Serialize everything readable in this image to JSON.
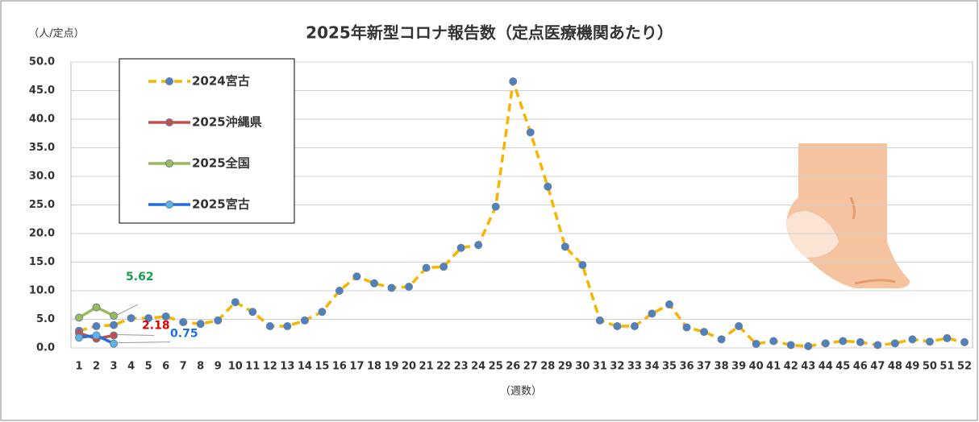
{
  "chart_data": {
    "type": "line",
    "title": "2025年新型コロナ報告数（定点医療機関あたり）",
    "y_label": "（人/定点）",
    "x_label": "（週数）",
    "categories": [
      "1",
      "2",
      "3",
      "4",
      "5",
      "6",
      "7",
      "8",
      "9",
      "10",
      "11",
      "12",
      "13",
      "14",
      "15",
      "16",
      "17",
      "18",
      "19",
      "20",
      "21",
      "22",
      "23",
      "24",
      "25",
      "26",
      "27",
      "28",
      "29",
      "30",
      "31",
      "32",
      "33",
      "34",
      "35",
      "36",
      "37",
      "38",
      "39",
      "40",
      "41",
      "42",
      "43",
      "44",
      "45",
      "46",
      "47",
      "48",
      "49",
      "50",
      "51",
      "52"
    ],
    "ylim": [
      0,
      50
    ],
    "yticks": [
      {
        "value": 0,
        "label": "0.0"
      },
      {
        "value": 5,
        "label": "5.0"
      },
      {
        "value": 10,
        "label": "10.0"
      },
      {
        "value": 15,
        "label": "15.0"
      },
      {
        "value": 20,
        "label": "20.0"
      },
      {
        "value": 25,
        "label": "25.0"
      },
      {
        "value": 30,
        "label": "30.0"
      },
      {
        "value": 35,
        "label": "35.0"
      },
      {
        "value": 40,
        "label": "40.0"
      },
      {
        "value": 45,
        "label": "45.0"
      },
      {
        "value": 50,
        "label": "50.0"
      }
    ],
    "grid": true,
    "legend": "upper left",
    "series": [
      {
        "name": "2024宮古",
        "color": "#f7b500",
        "marker_color": "#4f81bd",
        "dashed": true,
        "values": [
          3.0,
          3.8,
          4.0,
          5.2,
          5.2,
          5.5,
          4.5,
          4.2,
          4.8,
          8.0,
          6.3,
          3.8,
          3.8,
          4.8,
          6.3,
          10.0,
          12.5,
          11.3,
          10.5,
          10.7,
          14.0,
          14.2,
          17.5,
          18.0,
          24.7,
          46.6,
          37.7,
          28.2,
          17.7,
          14.5,
          4.8,
          3.8,
          3.8,
          6.0,
          7.6,
          3.6,
          2.8,
          1.5,
          3.8,
          0.7,
          1.2,
          0.5,
          0.3,
          0.8,
          1.2,
          1.0,
          0.5,
          0.8,
          1.5,
          1.1,
          1.7,
          1.0
        ]
      },
      {
        "name": "2025沖縄県",
        "color": "#c0504d",
        "marker_color": "#c0504d",
        "dashed": false,
        "label_color": "#e00000",
        "values": [
          2.6,
          1.6,
          2.18,
          null,
          null,
          null,
          null,
          null,
          null,
          null,
          null,
          null,
          null,
          null,
          null,
          null,
          null,
          null,
          null,
          null,
          null,
          null,
          null,
          null,
          null,
          null,
          null,
          null,
          null,
          null,
          null,
          null,
          null,
          null,
          null,
          null,
          null,
          null,
          null,
          null,
          null,
          null,
          null,
          null,
          null,
          null,
          null,
          null,
          null,
          null,
          null,
          null
        ]
      },
      {
        "name": "2025全国",
        "color": "#9bbb59",
        "marker_color": "#9bbb59",
        "dashed": false,
        "label_color": "#1a9e4a",
        "values": [
          5.3,
          7.1,
          5.62,
          null,
          null,
          null,
          null,
          null,
          null,
          null,
          null,
          null,
          null,
          null,
          null,
          null,
          null,
          null,
          null,
          null,
          null,
          null,
          null,
          null,
          null,
          null,
          null,
          null,
          null,
          null,
          null,
          null,
          null,
          null,
          null,
          null,
          null,
          null,
          null,
          null,
          null,
          null,
          null,
          null,
          null,
          null,
          null,
          null,
          null,
          null,
          null,
          null
        ]
      },
      {
        "name": "2025宮古",
        "color": "#1f6fe0",
        "marker_color": "#5bb5e8",
        "dashed": false,
        "label_color": "#1f6fe0",
        "values": [
          1.8,
          2.2,
          0.75,
          null,
          null,
          null,
          null,
          null,
          null,
          null,
          null,
          null,
          null,
          null,
          null,
          null,
          null,
          null,
          null,
          null,
          null,
          null,
          null,
          null,
          null,
          null,
          null,
          null,
          null,
          null,
          null,
          null,
          null,
          null,
          null,
          null,
          null,
          null,
          null,
          null,
          null,
          null,
          null,
          null,
          null,
          null,
          null,
          null,
          null,
          null,
          null,
          null
        ]
      }
    ]
  }
}
